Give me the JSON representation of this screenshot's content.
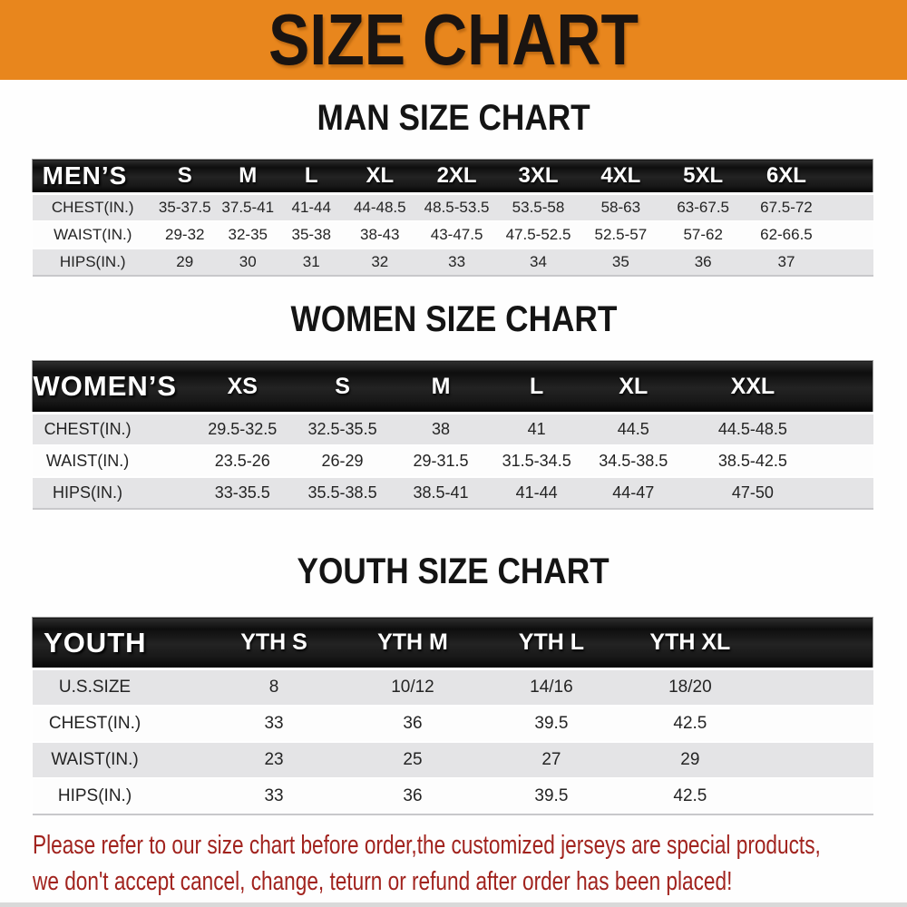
{
  "banner": {
    "title": "SIZE CHART",
    "bg_color": "#e8861d",
    "text_color": "#1a1411"
  },
  "sections": [
    {
      "id": "men",
      "heading": "MAN SIZE CHART",
      "header_label": "MEN’S",
      "columns": [
        "S",
        "M",
        "L",
        "XL",
        "2XL",
        "3XL",
        "4XL",
        "5XL",
        "6XL"
      ],
      "rows": [
        {
          "label": "CHEST(IN.)",
          "values": [
            "35-37.5",
            "37.5-41",
            "41-44",
            "44-48.5",
            "48.5-53.5",
            "53.5-58",
            "58-63",
            "63-67.5",
            "67.5-72"
          ]
        },
        {
          "label": "WAIST(IN.)",
          "values": [
            "29-32",
            "32-35",
            "35-38",
            "38-43",
            "43-47.5",
            "47.5-52.5",
            "52.5-57",
            "57-62",
            "62-66.5"
          ]
        },
        {
          "label": "HIPS(IN.)",
          "values": [
            "29",
            "30",
            "31",
            "32",
            "33",
            "34",
            "35",
            "36",
            "37"
          ]
        }
      ]
    },
    {
      "id": "women",
      "heading": "WOMEN SIZE CHART",
      "header_label": "WOMEN’S",
      "columns": [
        "XS",
        "S",
        "M",
        "L",
        "XL",
        "XXL"
      ],
      "rows": [
        {
          "label": "CHEST(IN.)",
          "values": [
            "29.5-32.5",
            "32.5-35.5",
            "38",
            "41",
            "44.5",
            "44.5-48.5"
          ]
        },
        {
          "label": "WAIST(IN.)",
          "values": [
            "23.5-26",
            "26-29",
            "29-31.5",
            "31.5-34.5",
            "34.5-38.5",
            "38.5-42.5"
          ]
        },
        {
          "label": "HIPS(IN.)",
          "values": [
            "33-35.5",
            "35.5-38.5",
            "38.5-41",
            "41-44",
            "44-47",
            "47-50"
          ]
        }
      ]
    },
    {
      "id": "youth",
      "heading": "YOUTH SIZE CHART",
      "header_label": "YOUTH",
      "columns": [
        "YTH S",
        "YTH M",
        "YTH L",
        "YTH XL"
      ],
      "rows": [
        {
          "label": "U.S.SIZE",
          "values": [
            "8",
            "10/12",
            "14/16",
            "18/20"
          ]
        },
        {
          "label": "CHEST(IN.)",
          "values": [
            "33",
            "36",
            "39.5",
            "42.5"
          ]
        },
        {
          "label": "WAIST(IN.)",
          "values": [
            "23",
            "25",
            "27",
            "29"
          ]
        },
        {
          "label": "HIPS(IN.)",
          "values": [
            "33",
            "36",
            "39.5",
            "42.5"
          ]
        }
      ]
    }
  ],
  "footer": {
    "line1": "Please refer to our size chart before order,the customized jerseys are special products,",
    "line2": "we don't accept cancel, change, teturn or refund after order has been placed!",
    "text_color": "#a1231e"
  }
}
